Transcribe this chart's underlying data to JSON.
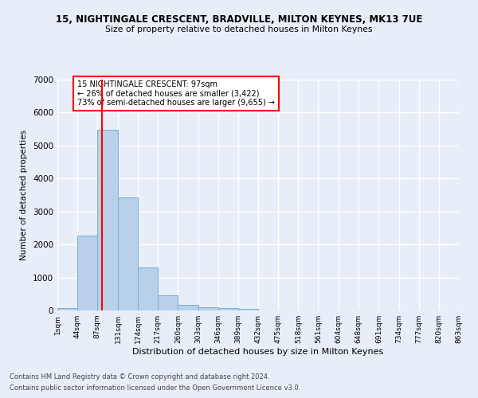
{
  "title": "15, NIGHTINGALE CRESCENT, BRADVILLE, MILTON KEYNES, MK13 7UE",
  "subtitle": "Size of property relative to detached houses in Milton Keynes",
  "xlabel": "Distribution of detached houses by size in Milton Keynes",
  "ylabel": "Number of detached properties",
  "footer1": "Contains HM Land Registry data © Crown copyright and database right 2024.",
  "footer2": "Contains public sector information licensed under the Open Government Licence v3.0.",
  "bins": [
    1,
    44,
    87,
    131,
    174,
    217,
    260,
    303,
    346,
    389,
    432,
    475,
    518,
    561,
    604,
    648,
    691,
    734,
    777,
    820,
    863
  ],
  "counts": [
    75,
    2280,
    5480,
    3430,
    1310,
    470,
    170,
    100,
    65,
    40,
    0,
    0,
    0,
    0,
    0,
    0,
    0,
    0,
    0,
    0
  ],
  "bar_color": "#b8d0ea",
  "bar_edge_color": "#7aafd4",
  "property_size": 97,
  "annotation_text": "15 NIGHTINGALE CRESCENT: 97sqm\n← 26% of detached houses are smaller (3,422)\n73% of semi-detached houses are larger (9,655) →",
  "annotation_box_color": "white",
  "annotation_box_edge_color": "red",
  "vline_color": "red",
  "vline_x": 97,
  "ylim": [
    0,
    7000
  ],
  "yticks": [
    0,
    1000,
    2000,
    3000,
    4000,
    5000,
    6000,
    7000
  ],
  "bg_color": "#e8eef8",
  "grid_color": "white",
  "tick_labels": [
    "1sqm",
    "44sqm",
    "87sqm",
    "131sqm",
    "174sqm",
    "217sqm",
    "260sqm",
    "303sqm",
    "346sqm",
    "389sqm",
    "432sqm",
    "475sqm",
    "518sqm",
    "561sqm",
    "604sqm",
    "648sqm",
    "691sqm",
    "734sqm",
    "777sqm",
    "820sqm",
    "863sqm"
  ]
}
